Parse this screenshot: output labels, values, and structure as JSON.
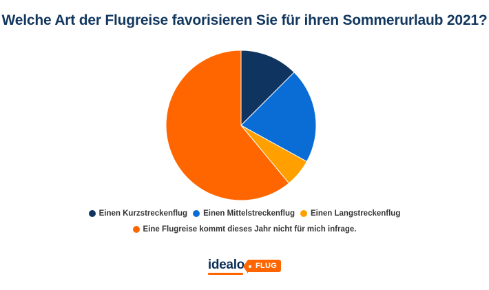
{
  "chart_data": {
    "type": "pie",
    "title": "Welche Art der Flugreise favorisieren Sie für ihren Sommerurlaub 2021?",
    "legend_position": "bottom",
    "slices": [
      {
        "label": "Einen Kurzstreckenflug",
        "value": 12.5,
        "color": "#0f3460"
      },
      {
        "label": "Einen Mittelstreckenflug",
        "value": 20.5,
        "color": "#0a6dd6"
      },
      {
        "label": "Einen Langstreckenflug",
        "value": 6,
        "color": "#ffa000"
      },
      {
        "label": "Eine Flugreise kommt dieses Jahr nicht für mich infrage.",
        "value": 61,
        "color": "#ff6600"
      }
    ]
  },
  "logo": {
    "word": "idealo",
    "tag": "FLUG"
  }
}
